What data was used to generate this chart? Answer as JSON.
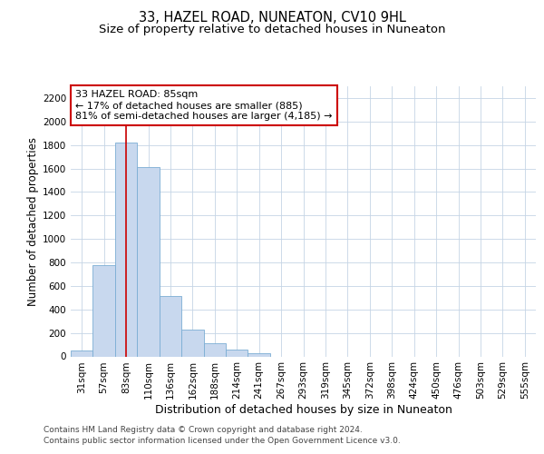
{
  "title": "33, HAZEL ROAD, NUNEATON, CV10 9HL",
  "subtitle": "Size of property relative to detached houses in Nuneaton",
  "xlabel": "Distribution of detached houses by size in Nuneaton",
  "ylabel": "Number of detached properties",
  "categories": [
    "31sqm",
    "57sqm",
    "83sqm",
    "110sqm",
    "136sqm",
    "162sqm",
    "188sqm",
    "214sqm",
    "241sqm",
    "267sqm",
    "293sqm",
    "319sqm",
    "345sqm",
    "372sqm",
    "398sqm",
    "424sqm",
    "450sqm",
    "476sqm",
    "503sqm",
    "529sqm",
    "555sqm"
  ],
  "values": [
    50,
    780,
    1820,
    1610,
    515,
    230,
    110,
    55,
    28,
    0,
    0,
    0,
    0,
    0,
    0,
    0,
    0,
    0,
    0,
    0,
    0
  ],
  "bar_color": "#c8d8ee",
  "bar_edge_color": "#7badd4",
  "vline_x_index": 2,
  "vline_color": "#cc0000",
  "annotation_text": "33 HAZEL ROAD: 85sqm\n← 17% of detached houses are smaller (885)\n81% of semi-detached houses are larger (4,185) →",
  "annotation_box_facecolor": "#ffffff",
  "annotation_box_edgecolor": "#cc0000",
  "ylim": [
    0,
    2300
  ],
  "yticks": [
    0,
    200,
    400,
    600,
    800,
    1000,
    1200,
    1400,
    1600,
    1800,
    2000,
    2200
  ],
  "plot_bg": "#ffffff",
  "fig_bg": "#ffffff",
  "grid_color": "#c5d5e5",
  "footer_line1": "Contains HM Land Registry data © Crown copyright and database right 2024.",
  "footer_line2": "Contains public sector information licensed under the Open Government Licence v3.0.",
  "title_fontsize": 10.5,
  "subtitle_fontsize": 9.5,
  "xlabel_fontsize": 9,
  "ylabel_fontsize": 8.5,
  "tick_fontsize": 7.5,
  "annotation_fontsize": 8,
  "footer_fontsize": 6.5
}
